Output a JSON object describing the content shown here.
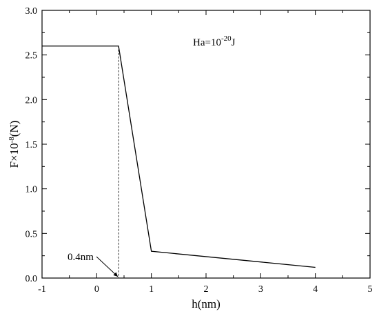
{
  "chart_data": {
    "type": "line",
    "xlabel": "h(nm)",
    "ylabel_base": "F×10",
    "ylabel_exp": "-8",
    "ylabel_unit": "(N)",
    "xlim": [
      -1,
      5
    ],
    "ylim": [
      0.0,
      3.0
    ],
    "x_ticks": [
      -1,
      0,
      1,
      2,
      3,
      4,
      5
    ],
    "x_tick_labels": [
      "-1",
      "0",
      "1",
      "2",
      "3",
      "4",
      "5"
    ],
    "y_ticks": [
      0.0,
      0.5,
      1.0,
      1.5,
      2.0,
      2.5,
      3.0
    ],
    "y_tick_labels": [
      "0.0",
      "0.5",
      "1.0",
      "1.5",
      "2.0",
      "2.5",
      "3.0"
    ],
    "grid": false,
    "series": [
      {
        "x": [
          -1,
          0.4,
          1,
          4
        ],
        "y": [
          2.6,
          2.6,
          0.3,
          0.12
        ],
        "color": "#000000"
      }
    ],
    "annotations": {
      "label_base": "Ha=10",
      "label_exp": "-20",
      "label_unit": "J",
      "marker_text": "0.4nm",
      "marker_x": 0.4
    }
  }
}
